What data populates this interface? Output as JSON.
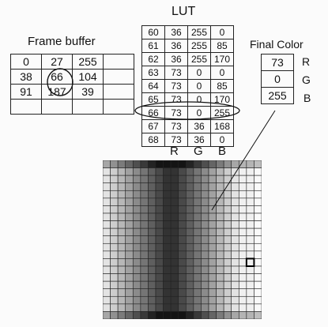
{
  "titles": {
    "lut": "LUT",
    "frame_buffer": "Frame buffer",
    "final_color": "Final Color"
  },
  "frame_buffer": {
    "rows": [
      [
        "0",
        "27",
        "255",
        ""
      ],
      [
        "38",
        "66",
        "104",
        ""
      ],
      [
        "91",
        "187",
        "39",
        ""
      ],
      [
        "",
        "",
        "",
        ""
      ]
    ],
    "highlighted_value": "66"
  },
  "lut": {
    "rows": [
      [
        "60",
        "36",
        "255",
        "0"
      ],
      [
        "61",
        "36",
        "255",
        "85"
      ],
      [
        "62",
        "36",
        "255",
        "170"
      ],
      [
        "63",
        "73",
        "0",
        "0"
      ],
      [
        "64",
        "73",
        "0",
        "85"
      ],
      [
        "65",
        "73",
        "0",
        "170"
      ],
      [
        "66",
        "73",
        "0",
        "255"
      ],
      [
        "67",
        "73",
        "36",
        "168"
      ],
      [
        "68",
        "73",
        "36",
        "0"
      ]
    ],
    "column_labels": [
      "R",
      "G",
      "B"
    ],
    "highlighted_index": "66"
  },
  "final_color": {
    "values": [
      "73",
      "0",
      "255"
    ],
    "labels": [
      "R",
      "G",
      "B"
    ]
  }
}
